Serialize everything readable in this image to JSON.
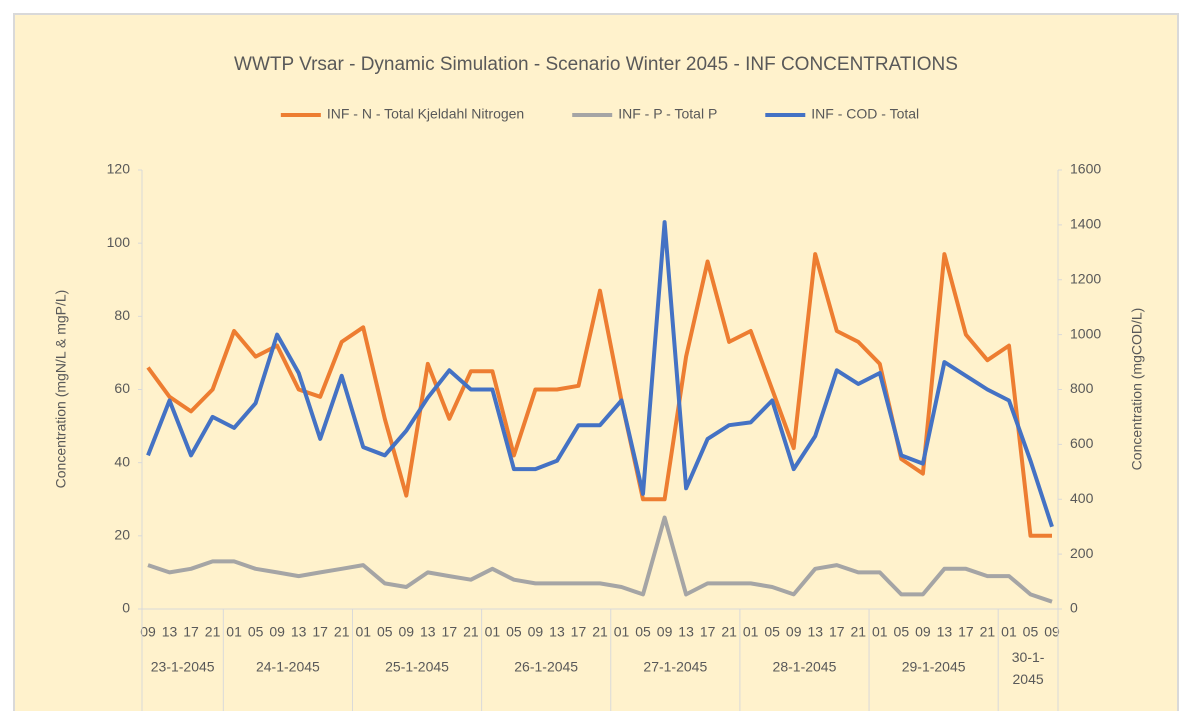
{
  "chart_data": {
    "type": "line",
    "title": "WWTP Vrsar - Dynamic Simulation - Scenario Winter 2045 - INF CONCENTRATIONS",
    "y_label": "Concentration (mgN/L & mgP/L)",
    "y2_label": "Concentration (mgCOD/L)",
    "categories": [
      "09",
      "13",
      "17",
      "21",
      "01",
      "05",
      "09",
      "13",
      "17",
      "21",
      "01",
      "05",
      "09",
      "13",
      "17",
      "21",
      "01",
      "05",
      "09",
      "13",
      "17",
      "21",
      "01",
      "05",
      "09",
      "13",
      "17",
      "21",
      "01",
      "05",
      "09",
      "13",
      "17",
      "21",
      "01",
      "05",
      "09",
      "13",
      "17",
      "21",
      "01",
      "05",
      "09"
    ],
    "date_groups": [
      {
        "label": "23-1-2045",
        "size": 4
      },
      {
        "label": "24-1-2045",
        "size": 6
      },
      {
        "label": "25-1-2045",
        "size": 6
      },
      {
        "label": "26-1-2045",
        "size": 6
      },
      {
        "label": "27-1-2045",
        "size": 6
      },
      {
        "label": "28-1-2045",
        "size": 6
      },
      {
        "label": "29-1-2045",
        "size": 6
      },
      {
        "label": "30-1-2045",
        "size": 3
      }
    ],
    "series": [
      {
        "name": "INF - N - Total Kjeldahl Nitrogen",
        "color": "#ed7d31",
        "axis": "y",
        "values": [
          66,
          58,
          54,
          60,
          76,
          69,
          72,
          60,
          58,
          73,
          77,
          52,
          31,
          67,
          52,
          65,
          65,
          42,
          60,
          60,
          61,
          87,
          57,
          30,
          30,
          69,
          95,
          73,
          76,
          60,
          44,
          97,
          76,
          73,
          67,
          41,
          37,
          97,
          75,
          68,
          72,
          20,
          20
        ]
      },
      {
        "name": "INF - P - Total P",
        "color": "#a5a5a5",
        "axis": "y",
        "values": [
          12,
          10,
          11,
          13,
          13,
          11,
          10,
          9,
          10,
          11,
          12,
          7,
          6,
          10,
          9,
          8,
          11,
          8,
          7,
          7,
          7,
          7,
          6,
          4,
          25,
          4,
          7,
          7,
          7,
          6,
          4,
          11,
          12,
          10,
          10,
          4,
          4,
          11,
          11,
          9,
          9,
          4,
          2
        ]
      },
      {
        "name": "INF - COD - Total",
        "color": "#4472c4",
        "axis": "y2",
        "values": [
          560,
          760,
          560,
          700,
          660,
          750,
          1000,
          860,
          620,
          850,
          590,
          560,
          650,
          770,
          870,
          800,
          800,
          510,
          510,
          540,
          670,
          670,
          760,
          420,
          1410,
          440,
          620,
          670,
          680,
          760,
          510,
          630,
          870,
          820,
          860,
          560,
          530,
          900,
          850,
          800,
          760,
          540,
          300
        ]
      }
    ],
    "ylim": [
      0,
      120
    ],
    "yticks": [
      0,
      20,
      40,
      60,
      80,
      100,
      120
    ],
    "y2lim": [
      0,
      1600
    ],
    "y2ticks": [
      0,
      200,
      400,
      600,
      800,
      1000,
      1200,
      1400,
      1600
    ],
    "grid": false,
    "legend": "top"
  }
}
